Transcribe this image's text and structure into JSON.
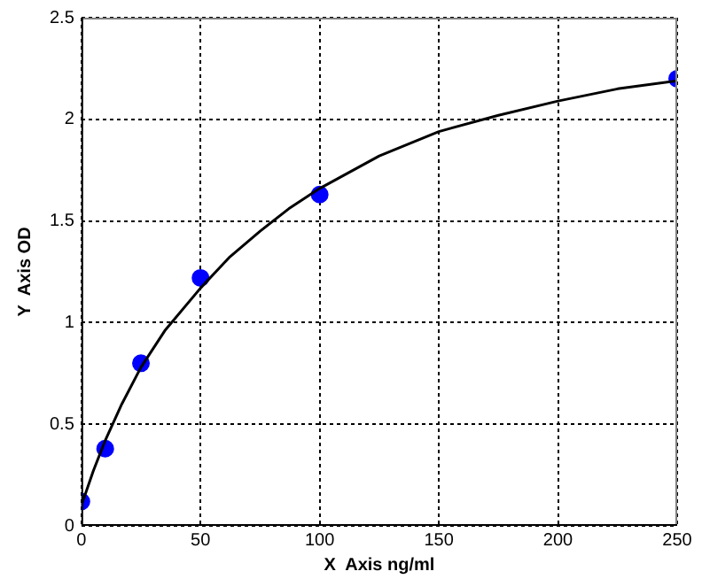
{
  "chart_data": {
    "type": "scatter",
    "xlabel": "X  Axis ng/ml",
    "ylabel": "Y  Axis OD",
    "xlim": [
      0,
      250
    ],
    "xticks": [
      0,
      50,
      100,
      150,
      200,
      250
    ],
    "ylim": [
      0,
      2.5
    ],
    "yticks": [
      0,
      0.5,
      1,
      1.5,
      2,
      2.5
    ],
    "grid": true,
    "legend": false,
    "series": [
      {
        "type": "line",
        "color": "#000000",
        "marker": "none",
        "line_style": "solid",
        "x": [
          0,
          5,
          10,
          17,
          25,
          35,
          50,
          62,
          75,
          87,
          100,
          125,
          150,
          175,
          200,
          225,
          250
        ],
        "values": [
          0.1,
          0.27,
          0.42,
          0.6,
          0.78,
          0.96,
          1.17,
          1.32,
          1.45,
          1.56,
          1.66,
          1.82,
          1.94,
          2.02,
          2.09,
          2.15,
          2.19
        ]
      },
      {
        "type": "scatter",
        "color": "#0000ff",
        "marker": "circle",
        "x": [
          0,
          10,
          25,
          50,
          100,
          250
        ],
        "values": [
          0.12,
          0.38,
          0.8,
          1.22,
          1.63,
          2.2
        ]
      }
    ]
  }
}
